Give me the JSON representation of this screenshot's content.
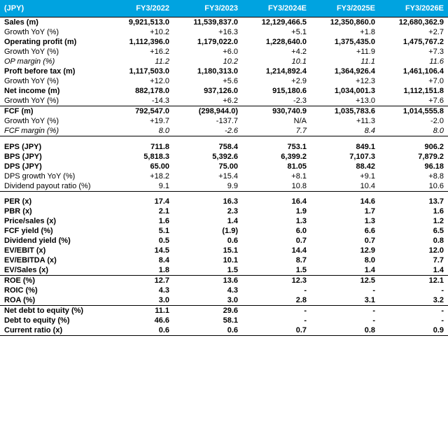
{
  "header": {
    "currency_label": "(JPY)",
    "periods": [
      "FY3/2022",
      "FY3/2023",
      "FY3/2024E",
      "FY3/2025E",
      "FY3/2026E"
    ]
  },
  "header_bg": "#00a3e0",
  "header_fg": "#ffffff",
  "rows": [
    {
      "label": "Sales (m)",
      "vals": [
        "9,921,513.0",
        "11,539,837.0",
        "12,129,466.5",
        "12,350,860.0",
        "12,680,362.9"
      ],
      "bold": true,
      "seps": "bottop"
    },
    {
      "label": "Growth YoY (%)",
      "vals": [
        "+10.2",
        "+16.3",
        "+5.1",
        "+1.8",
        "+2.7"
      ]
    },
    {
      "label": "Operating profit (m)",
      "vals": [
        "1,112,396.0",
        "1,179,022.0",
        "1,228,640.0",
        "1,375,435.0",
        "1,475,767.2"
      ],
      "bold": true
    },
    {
      "label": "Growth YoY (%)",
      "vals": [
        "+16.2",
        "+6.0",
        "+4.2",
        "+11.9",
        "+7.3"
      ]
    },
    {
      "label": "OP margin (%)",
      "vals": [
        "11.2",
        "10.2",
        "10.1",
        "11.1",
        "11.6"
      ],
      "italic": true
    },
    {
      "label": "Proft before tax (m)",
      "vals": [
        "1,117,503.0",
        "1,180,313.0",
        "1,214,892.4",
        "1,364,926.4",
        "1,461,106.4"
      ],
      "bold": true
    },
    {
      "label": "Growth YoY (%)",
      "vals": [
        "+12.0",
        "+5.6",
        "+2.9",
        "+12.3",
        "+7.0"
      ]
    },
    {
      "label": "Net income (m)",
      "vals": [
        "882,178.0",
        "937,126.0",
        "915,180.6",
        "1,034,001.3",
        "1,112,151.8"
      ],
      "bold": true
    },
    {
      "label": "Growth YoY (%)",
      "vals": [
        "-14.3",
        "+6.2",
        "-2.3",
        "+13.0",
        "+7.6"
      ]
    },
    {
      "label": "FCF (m)",
      "vals": [
        "792,547.0",
        "(298,944.0)",
        "930,740.9",
        "1,035,783.6",
        "1,014,555.8"
      ],
      "bold": true,
      "seps": "top"
    },
    {
      "label": "Growth YoY (%)",
      "vals": [
        "+19.7",
        "-137.7",
        "N/A",
        "+11.3",
        "-2.0"
      ]
    },
    {
      "label": "FCF margin (%)",
      "vals": [
        "8.0",
        "-2.6",
        "7.7",
        "8.4",
        "8.0"
      ],
      "italic": true,
      "seps": "bottom"
    },
    {
      "type": "spacer"
    },
    {
      "label": "EPS (JPY)",
      "vals": [
        "711.8",
        "758.4",
        "753.1",
        "849.1",
        "906.2"
      ],
      "bold": true
    },
    {
      "label": "BPS (JPY)",
      "vals": [
        "5,818.3",
        "5,392.6",
        "6,399.2",
        "7,107.3",
        "7,879.2"
      ],
      "bold": true
    },
    {
      "label": "DPS (JPY)",
      "vals": [
        "65.00",
        "75.00",
        "81.05",
        "88.42",
        "96.18"
      ],
      "bold": true
    },
    {
      "label": "DPS growth YoY (%)",
      "vals": [
        "+18.2",
        "+15.4",
        "+8.1",
        "+9.1",
        "+8.8"
      ]
    },
    {
      "label": "Dividend payout ratio (%)",
      "vals": [
        "9.1",
        "9.9",
        "10.8",
        "10.4",
        "10.6"
      ],
      "seps": "bottom"
    },
    {
      "type": "spacer"
    },
    {
      "label": "PER (x)",
      "vals": [
        "17.4",
        "16.3",
        "16.4",
        "14.6",
        "13.7"
      ],
      "bold": true
    },
    {
      "label": "PBR (x)",
      "vals": [
        "2.1",
        "2.3",
        "1.9",
        "1.7",
        "1.6"
      ],
      "bold": true
    },
    {
      "label": "Price/sales (x)",
      "vals": [
        "1.6",
        "1.4",
        "1.3",
        "1.3",
        "1.2"
      ],
      "bold": true
    },
    {
      "label": "FCF yield (%)",
      "vals": [
        "5.1",
        "(1.9)",
        "6.0",
        "6.6",
        "6.5"
      ],
      "bold": true
    },
    {
      "label": "Dividend yield (%)",
      "vals": [
        "0.5",
        "0.6",
        "0.7",
        "0.7",
        "0.8"
      ],
      "bold": true
    },
    {
      "label": "EV/EBIT (x)",
      "vals": [
        "14.5",
        "15.1",
        "14.4",
        "12.9",
        "12.0"
      ],
      "bold": true
    },
    {
      "label": "EV/EBITDA (x)",
      "vals": [
        "8.4",
        "10.1",
        "8.7",
        "8.0",
        "7.7"
      ],
      "bold": true
    },
    {
      "label": "EV/Sales (x)",
      "vals": [
        "1.8",
        "1.5",
        "1.5",
        "1.4",
        "1.4"
      ],
      "bold": true,
      "seps": "bottom"
    },
    {
      "label": "ROE (%)",
      "vals": [
        "12.7",
        "13.6",
        "12.3",
        "12.5",
        "12.1"
      ],
      "bold": true
    },
    {
      "label": "ROIC (%)",
      "vals": [
        "4.3",
        "4.3",
        "-",
        "-",
        "-"
      ],
      "bold": true
    },
    {
      "label": "ROA (%)",
      "vals": [
        "3.0",
        "3.0",
        "2.8",
        "3.1",
        "3.2"
      ],
      "bold": true,
      "seps": "bottom"
    },
    {
      "label": "Net debt to equity (%)",
      "vals": [
        "11.1",
        "29.6",
        "-",
        "-",
        "-"
      ],
      "bold": true
    },
    {
      "label": "Debt to equity (%)",
      "vals": [
        "46.6",
        "58.1",
        "-",
        "-",
        "-"
      ],
      "bold": true
    },
    {
      "label": "Current ratio (x)",
      "vals": [
        "0.6",
        "0.6",
        "0.7",
        "0.8",
        "0.9"
      ],
      "bold": true,
      "seps": "bottom"
    }
  ]
}
